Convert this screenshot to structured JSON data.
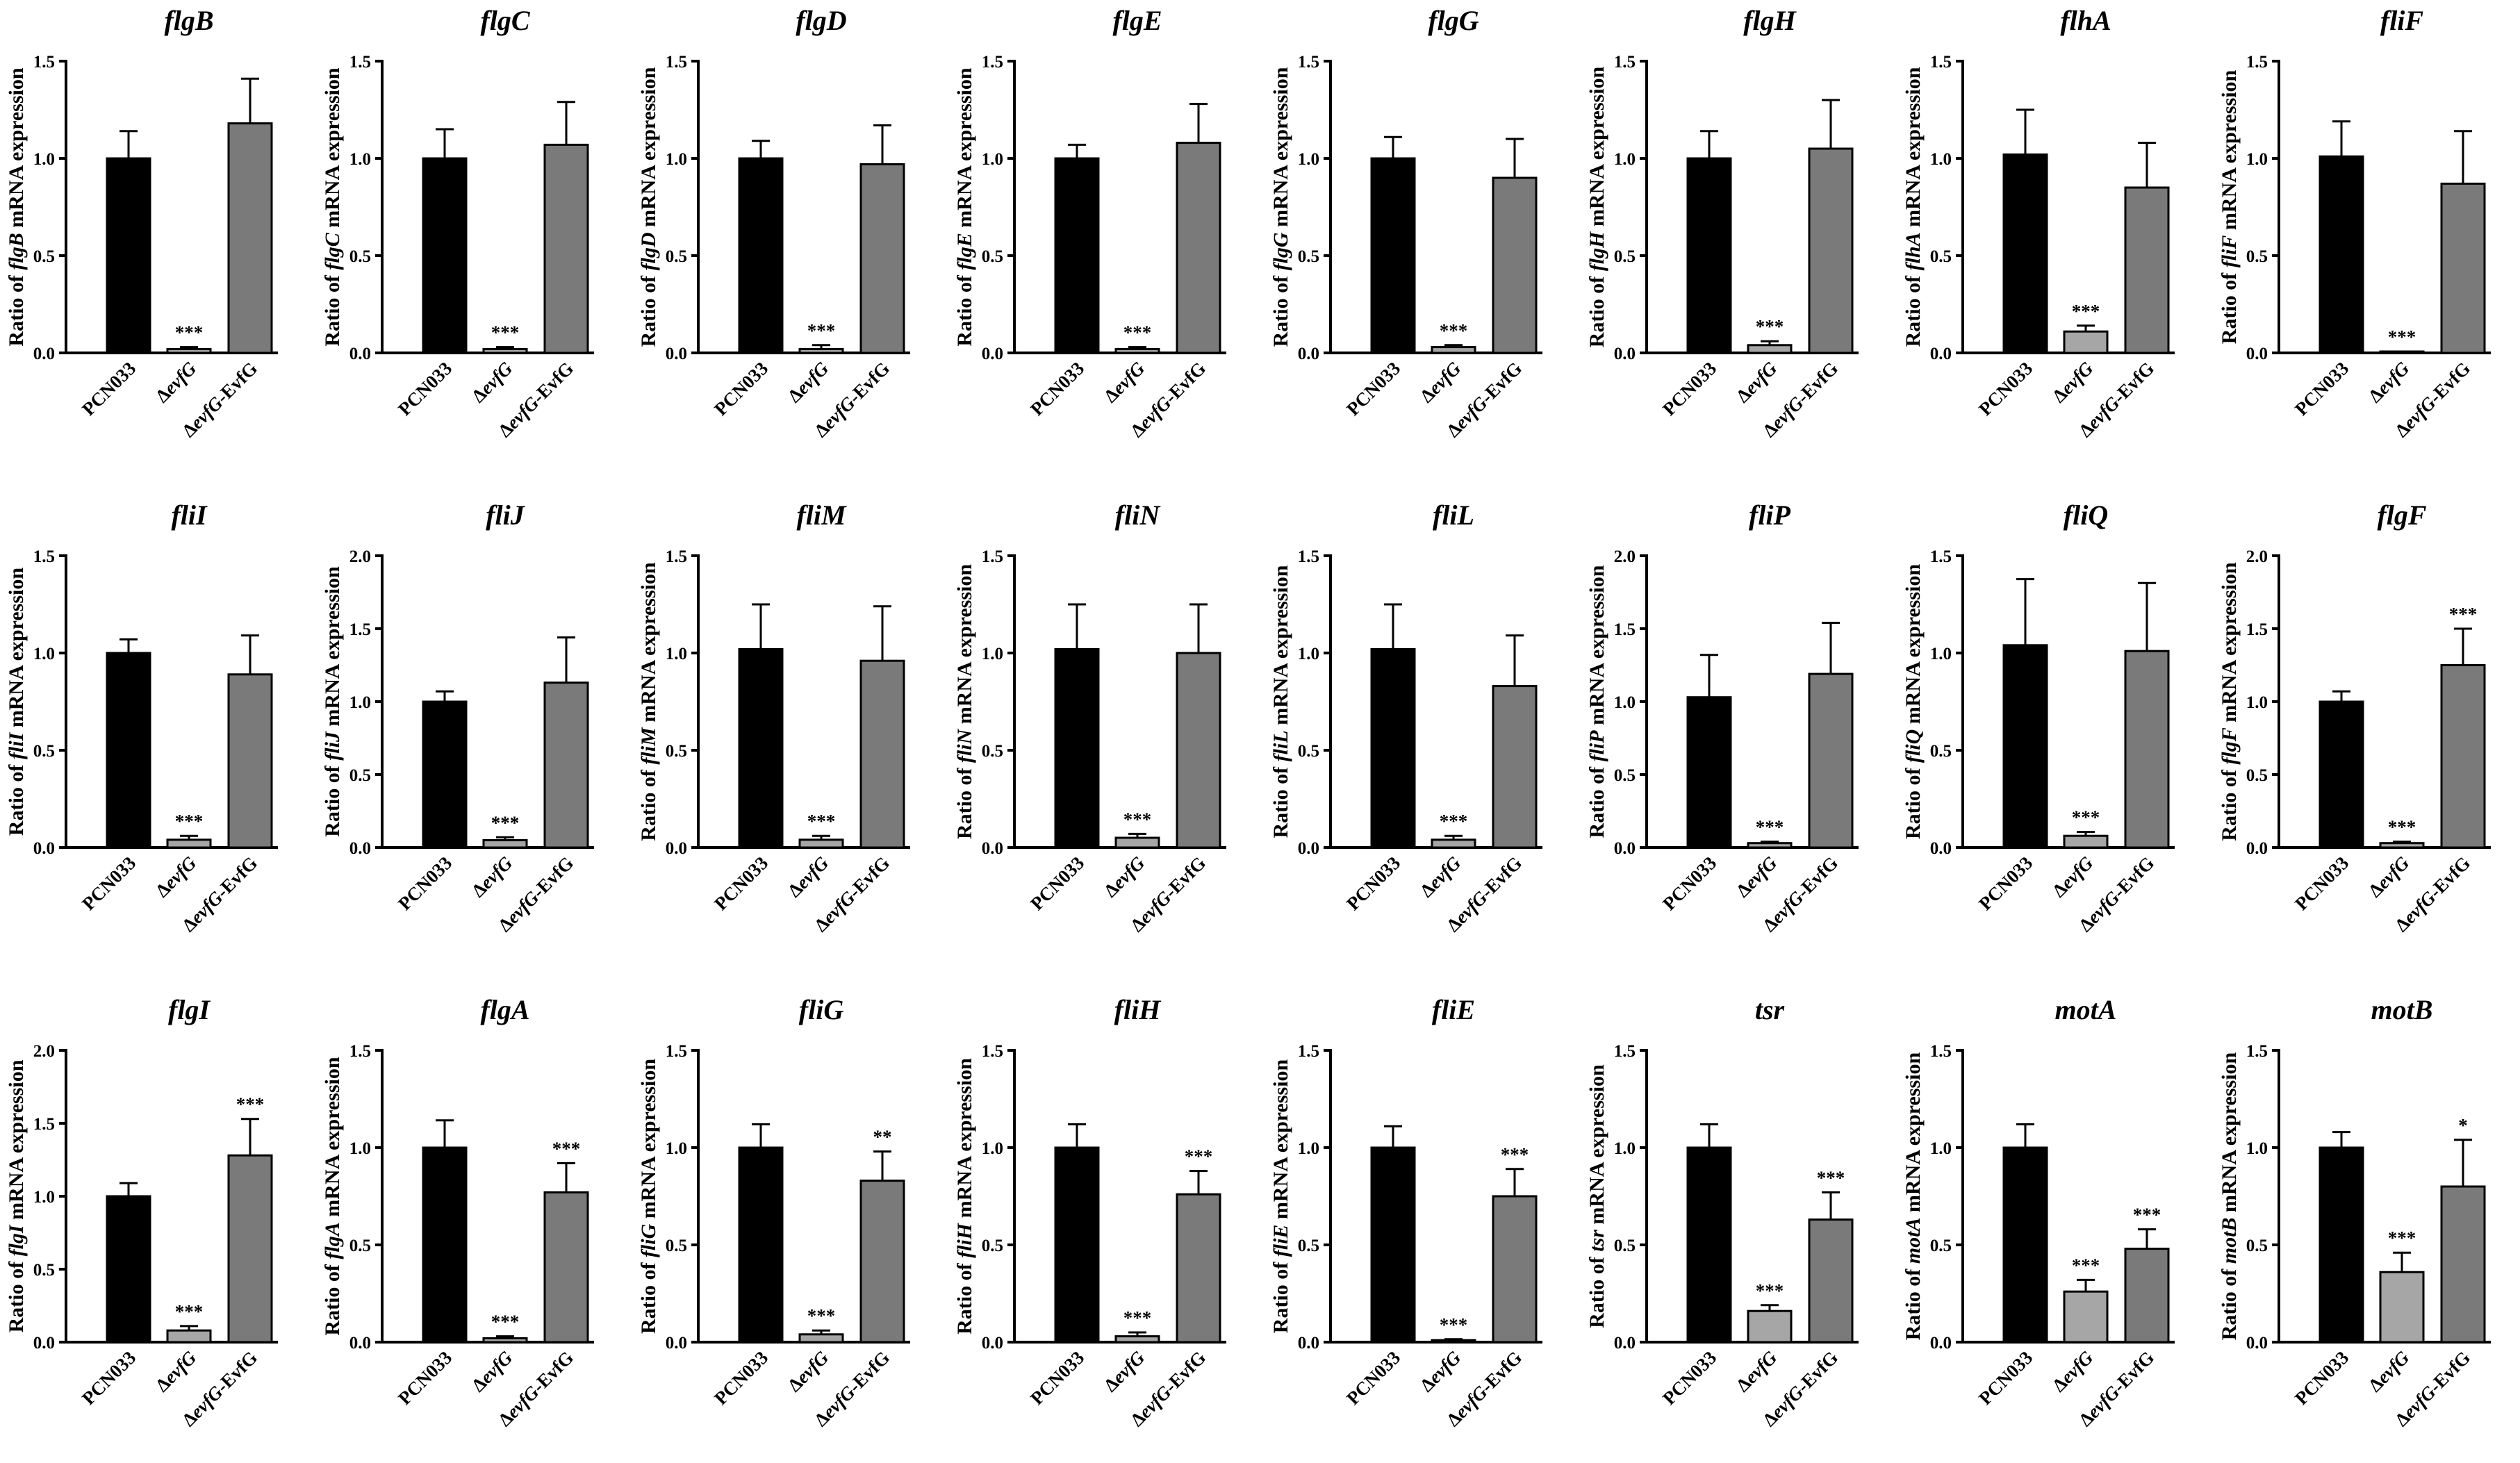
{
  "colors": {
    "wild_type": "#000000",
    "mutant": "#a6a6a6",
    "complemented": "#7a7a7a"
  },
  "chart_data": [
    {
      "type": "bar",
      "title": "flgB",
      "ylabel": "Ratio of flgB mRNA expression",
      "ylim": [
        0,
        1.5
      ],
      "ticks": [
        0,
        0.5,
        1,
        1.5
      ],
      "tick_labels": [
        "0.0",
        "0.5",
        "1.0",
        "1.5"
      ],
      "categories": [
        "PCN033",
        "ΔevfG",
        "ΔevfG-EvfG"
      ],
      "values": [
        1.0,
        0.02,
        1.18
      ],
      "errors": [
        0.14,
        0.01,
        0.23
      ],
      "significance": [
        "",
        "***",
        ""
      ]
    },
    {
      "type": "bar",
      "title": "flgC",
      "ylabel": "Ratio of flgC mRNA expression",
      "ylim": [
        0,
        1.5
      ],
      "ticks": [
        0,
        0.5,
        1,
        1.5
      ],
      "tick_labels": [
        "0.0",
        "0.5",
        "1.0",
        "1.5"
      ],
      "categories": [
        "PCN033",
        "ΔevfG",
        "ΔevfG-EvfG"
      ],
      "values": [
        1.0,
        0.02,
        1.07
      ],
      "errors": [
        0.15,
        0.01,
        0.22
      ],
      "significance": [
        "",
        "***",
        ""
      ]
    },
    {
      "type": "bar",
      "title": "flgD",
      "ylabel": "Ratio of flgD mRNA expression",
      "ylim": [
        0,
        1.5
      ],
      "ticks": [
        0,
        0.5,
        1,
        1.5
      ],
      "tick_labels": [
        "0.0",
        "0.5",
        "1.0",
        "1.5"
      ],
      "categories": [
        "PCN033",
        "ΔevfG",
        "ΔevfG-EvfG"
      ],
      "values": [
        1.0,
        0.02,
        0.97
      ],
      "errors": [
        0.09,
        0.02,
        0.2
      ],
      "significance": [
        "",
        "***",
        ""
      ]
    },
    {
      "type": "bar",
      "title": "flgE",
      "ylabel": "Ratio of flgE mRNA expression",
      "ylim": [
        0,
        1.5
      ],
      "ticks": [
        0,
        0.5,
        1,
        1.5
      ],
      "tick_labels": [
        "0.0",
        "0.5",
        "1.0",
        "1.5"
      ],
      "categories": [
        "PCN033",
        "ΔevfG",
        "ΔevfG-EvfG"
      ],
      "values": [
        1.0,
        0.02,
        1.08
      ],
      "errors": [
        0.07,
        0.01,
        0.2
      ],
      "significance": [
        "",
        "***",
        ""
      ]
    },
    {
      "type": "bar",
      "title": "flgG",
      "ylabel": "Ratio of flgG mRNA expression",
      "ylim": [
        0,
        1.5
      ],
      "ticks": [
        0,
        0.5,
        1,
        1.5
      ],
      "tick_labels": [
        "0.0",
        "0.5",
        "1.0",
        "1.5"
      ],
      "categories": [
        "PCN033",
        "ΔevfG",
        "ΔevfG-EvfG"
      ],
      "values": [
        1.0,
        0.03,
        0.9
      ],
      "errors": [
        0.11,
        0.01,
        0.2
      ],
      "significance": [
        "",
        "***",
        ""
      ]
    },
    {
      "type": "bar",
      "title": "flgH",
      "ylabel": "Ratio of flgH mRNA expression",
      "ylim": [
        0,
        1.5
      ],
      "ticks": [
        0,
        0.5,
        1,
        1.5
      ],
      "tick_labels": [
        "0.0",
        "0.5",
        "1.0",
        "1.5"
      ],
      "categories": [
        "PCN033",
        "ΔevfG",
        "ΔevfG-EvfG"
      ],
      "values": [
        1.0,
        0.04,
        1.05
      ],
      "errors": [
        0.14,
        0.02,
        0.25
      ],
      "significance": [
        "",
        "***",
        ""
      ]
    },
    {
      "type": "bar",
      "title": "flhA",
      "ylabel": "Ratio of flhA mRNA expression",
      "ylim": [
        0,
        1.5
      ],
      "ticks": [
        0,
        0.5,
        1,
        1.5
      ],
      "tick_labels": [
        "0.0",
        "0.5",
        "1.0",
        "1.5"
      ],
      "categories": [
        "PCN033",
        "ΔevfG",
        "ΔevfG-EvfG"
      ],
      "values": [
        1.02,
        0.11,
        0.85
      ],
      "errors": [
        0.23,
        0.03,
        0.23
      ],
      "significance": [
        "",
        "***",
        ""
      ]
    },
    {
      "type": "bar",
      "title": "fliF",
      "ylabel": "Ratio of fliF mRNA expression",
      "ylim": [
        0,
        1.5
      ],
      "ticks": [
        0,
        0.5,
        1,
        1.5
      ],
      "tick_labels": [
        "0.0",
        "0.5",
        "1.0",
        "1.5"
      ],
      "categories": [
        "PCN033",
        "ΔevfG",
        "ΔevfG-EvfG"
      ],
      "values": [
        1.01,
        0.005,
        0.87
      ],
      "errors": [
        0.18,
        0.002,
        0.27
      ],
      "significance": [
        "",
        "***",
        ""
      ]
    },
    {
      "type": "bar",
      "title": "fliI",
      "ylabel": "Ratio of fliI mRNA expression",
      "ylim": [
        0,
        1.5
      ],
      "ticks": [
        0,
        0.5,
        1,
        1.5
      ],
      "tick_labels": [
        "0.0",
        "0.5",
        "1.0",
        "1.5"
      ],
      "categories": [
        "PCN033",
        "ΔevfG",
        "ΔevfG-EvfG"
      ],
      "values": [
        1.0,
        0.04,
        0.89
      ],
      "errors": [
        0.07,
        0.02,
        0.2
      ],
      "significance": [
        "",
        "***",
        ""
      ]
    },
    {
      "type": "bar",
      "title": "fliJ",
      "ylabel": "Ratio of fliJ mRNA expression",
      "ylim": [
        0,
        2.0
      ],
      "ticks": [
        0,
        0.5,
        1,
        1.5,
        2
      ],
      "tick_labels": [
        "0.0",
        "0.5",
        "1.0",
        "1.5",
        "2.0"
      ],
      "categories": [
        "PCN033",
        "ΔevfG",
        "ΔevfG-EvfG"
      ],
      "values": [
        1.0,
        0.05,
        1.13
      ],
      "errors": [
        0.07,
        0.02,
        0.31
      ],
      "significance": [
        "",
        "***",
        ""
      ]
    },
    {
      "type": "bar",
      "title": "fliM",
      "ylabel": "Ratio of fliM mRNA expression",
      "ylim": [
        0,
        1.5
      ],
      "ticks": [
        0,
        0.5,
        1,
        1.5
      ],
      "tick_labels": [
        "0.0",
        "0.5",
        "1.0",
        "1.5"
      ],
      "categories": [
        "PCN033",
        "ΔevfG",
        "ΔevfG-EvfG"
      ],
      "values": [
        1.02,
        0.04,
        0.96
      ],
      "errors": [
        0.23,
        0.02,
        0.28
      ],
      "significance": [
        "",
        "***",
        ""
      ]
    },
    {
      "type": "bar",
      "title": "fliN",
      "ylabel": "Ratio of fliN mRNA expression",
      "ylim": [
        0,
        1.5
      ],
      "ticks": [
        0,
        0.5,
        1,
        1.5
      ],
      "tick_labels": [
        "0.0",
        "0.5",
        "1.0",
        "1.5"
      ],
      "categories": [
        "PCN033",
        "ΔevfG",
        "ΔevfG-EvfG"
      ],
      "values": [
        1.02,
        0.05,
        1.0
      ],
      "errors": [
        0.23,
        0.02,
        0.25
      ],
      "significance": [
        "",
        "***",
        ""
      ]
    },
    {
      "type": "bar",
      "title": "fliL",
      "ylabel": "Ratio of fliL  mRNA expression",
      "ylim": [
        0,
        1.5
      ],
      "ticks": [
        0,
        0.5,
        1,
        1.5
      ],
      "tick_labels": [
        "0.0",
        "0.5",
        "1.0",
        "1.5"
      ],
      "categories": [
        "PCN033",
        "ΔevfG",
        "ΔevfG-EvfG"
      ],
      "values": [
        1.02,
        0.04,
        0.83
      ],
      "errors": [
        0.23,
        0.02,
        0.26
      ],
      "significance": [
        "",
        "***",
        ""
      ]
    },
    {
      "type": "bar",
      "title": "fliP",
      "ylabel": "Ratio of fliP mRNA expression",
      "ylim": [
        0,
        2.0
      ],
      "ticks": [
        0,
        0.5,
        1,
        1.5,
        2
      ],
      "tick_labels": [
        "0.0",
        "0.5",
        "1.0",
        "1.5",
        "2.0"
      ],
      "categories": [
        "PCN033",
        "ΔevfG",
        "ΔevfG-EvfG"
      ],
      "values": [
        1.03,
        0.03,
        1.19
      ],
      "errors": [
        0.29,
        0.01,
        0.35
      ],
      "significance": [
        "",
        "***",
        ""
      ]
    },
    {
      "type": "bar",
      "title": "fliQ",
      "ylabel": "Ratio of fliQ mRNA expression",
      "ylim": [
        0,
        1.5
      ],
      "ticks": [
        0,
        0.5,
        1,
        1.5
      ],
      "tick_labels": [
        "0.0",
        "0.5",
        "1.0",
        "1.5"
      ],
      "categories": [
        "PCN033",
        "ΔevfG",
        "ΔevfG-EvfG"
      ],
      "values": [
        1.04,
        0.06,
        1.01
      ],
      "errors": [
        0.34,
        0.02,
        0.35
      ],
      "significance": [
        "",
        "***",
        ""
      ]
    },
    {
      "type": "bar",
      "title": "flgF",
      "ylabel": "Ratio of flgF mRNA expression",
      "ylim": [
        0,
        2.0
      ],
      "ticks": [
        0,
        0.5,
        1,
        1.5,
        2
      ],
      "tick_labels": [
        "0.0",
        "0.5",
        "1.0",
        "1.5",
        "2.0"
      ],
      "categories": [
        "PCN033",
        "ΔevfG",
        "ΔevfG-EvfG"
      ],
      "values": [
        1.0,
        0.03,
        1.25
      ],
      "errors": [
        0.07,
        0.01,
        0.25
      ],
      "significance": [
        "",
        "***",
        "***"
      ]
    },
    {
      "type": "bar",
      "title": "flgI",
      "ylabel": "Ratio of flgI mRNA expression",
      "ylim": [
        0,
        2.0
      ],
      "ticks": [
        0,
        0.5,
        1,
        1.5,
        2
      ],
      "tick_labels": [
        "0.0",
        "0.5",
        "1.0",
        "1.5",
        "2.0"
      ],
      "categories": [
        "PCN033",
        "ΔevfG",
        "ΔevfG-EvfG"
      ],
      "values": [
        1.0,
        0.08,
        1.28
      ],
      "errors": [
        0.09,
        0.03,
        0.25
      ],
      "significance": [
        "",
        "***",
        "***"
      ]
    },
    {
      "type": "bar",
      "title": "flgA",
      "ylabel": "Ratio of flgA mRNA expression",
      "ylim": [
        0,
        1.5
      ],
      "ticks": [
        0,
        0.5,
        1,
        1.5
      ],
      "tick_labels": [
        "0.0",
        "0.5",
        "1.0",
        "1.5"
      ],
      "categories": [
        "PCN033",
        "ΔevfG",
        "ΔevfG-EvfG"
      ],
      "values": [
        1.0,
        0.02,
        0.77
      ],
      "errors": [
        0.14,
        0.01,
        0.15
      ],
      "significance": [
        "",
        "***",
        "***"
      ]
    },
    {
      "type": "bar",
      "title": "fliG",
      "ylabel": "Ratio of fliG mRNA expression",
      "ylim": [
        0,
        1.5
      ],
      "ticks": [
        0,
        0.5,
        1,
        1.5
      ],
      "tick_labels": [
        "0.0",
        "0.5",
        "1.0",
        "1.5"
      ],
      "categories": [
        "PCN033",
        "ΔevfG",
        "ΔevfG-EvfG"
      ],
      "values": [
        1.0,
        0.04,
        0.83
      ],
      "errors": [
        0.12,
        0.02,
        0.15
      ],
      "significance": [
        "",
        "***",
        "**"
      ]
    },
    {
      "type": "bar",
      "title": "fliH",
      "ylabel": "Ratio of fliH mRNA expression",
      "ylim": [
        0,
        1.5
      ],
      "ticks": [
        0,
        0.5,
        1,
        1.5
      ],
      "tick_labels": [
        "0.0",
        "0.5",
        "1.0",
        "1.5"
      ],
      "categories": [
        "PCN033",
        "ΔevfG",
        "ΔevfG-EvfG"
      ],
      "values": [
        1.0,
        0.03,
        0.76
      ],
      "errors": [
        0.12,
        0.02,
        0.12
      ],
      "significance": [
        "",
        "***",
        "***"
      ]
    },
    {
      "type": "bar",
      "title": "fliE",
      "ylabel": "Ratio of fliE mRNA expression",
      "ylim": [
        0,
        1.5
      ],
      "ticks": [
        0,
        0.5,
        1,
        1.5
      ],
      "tick_labels": [
        "0.0",
        "0.5",
        "1.0",
        "1.5"
      ],
      "categories": [
        "PCN033",
        "ΔevfG",
        "ΔevfG-EvfG"
      ],
      "values": [
        1.0,
        0.01,
        0.75
      ],
      "errors": [
        0.11,
        0.005,
        0.14
      ],
      "significance": [
        "",
        "***",
        "***"
      ]
    },
    {
      "type": "bar",
      "title": "tsr",
      "ylabel": "Ratio of tsr mRNA expression",
      "ylim": [
        0,
        1.5
      ],
      "ticks": [
        0,
        0.5,
        1,
        1.5
      ],
      "tick_labels": [
        "0.0",
        "0.5",
        "1.0",
        "1.5"
      ],
      "categories": [
        "PCN033",
        "ΔevfG",
        "ΔevfG-EvfG"
      ],
      "values": [
        1.0,
        0.16,
        0.63
      ],
      "errors": [
        0.12,
        0.03,
        0.14
      ],
      "significance": [
        "",
        "***",
        "***"
      ]
    },
    {
      "type": "bar",
      "title": "motA",
      "ylabel": "Ratio of motA mRNA expression",
      "ylim": [
        0,
        1.5
      ],
      "ticks": [
        0,
        0.5,
        1,
        1.5
      ],
      "tick_labels": [
        "0.0",
        "0.5",
        "1.0",
        "1.5"
      ],
      "categories": [
        "PCN033",
        "ΔevfG",
        "ΔevfG-EvfG"
      ],
      "values": [
        1.0,
        0.26,
        0.48
      ],
      "errors": [
        0.12,
        0.06,
        0.1
      ],
      "significance": [
        "",
        "***",
        "***"
      ]
    },
    {
      "type": "bar",
      "title": "motB",
      "ylabel": "Ratio of motB mRNA expression",
      "ylim": [
        0,
        1.5
      ],
      "ticks": [
        0,
        0.5,
        1,
        1.5
      ],
      "tick_labels": [
        "0.0",
        "0.5",
        "1.0",
        "1.5"
      ],
      "categories": [
        "PCN033",
        "ΔevfG",
        "ΔevfG-EvfG"
      ],
      "values": [
        1.0,
        0.36,
        0.8
      ],
      "errors": [
        0.08,
        0.1,
        0.24
      ],
      "significance": [
        "",
        "***",
        "*"
      ]
    }
  ]
}
